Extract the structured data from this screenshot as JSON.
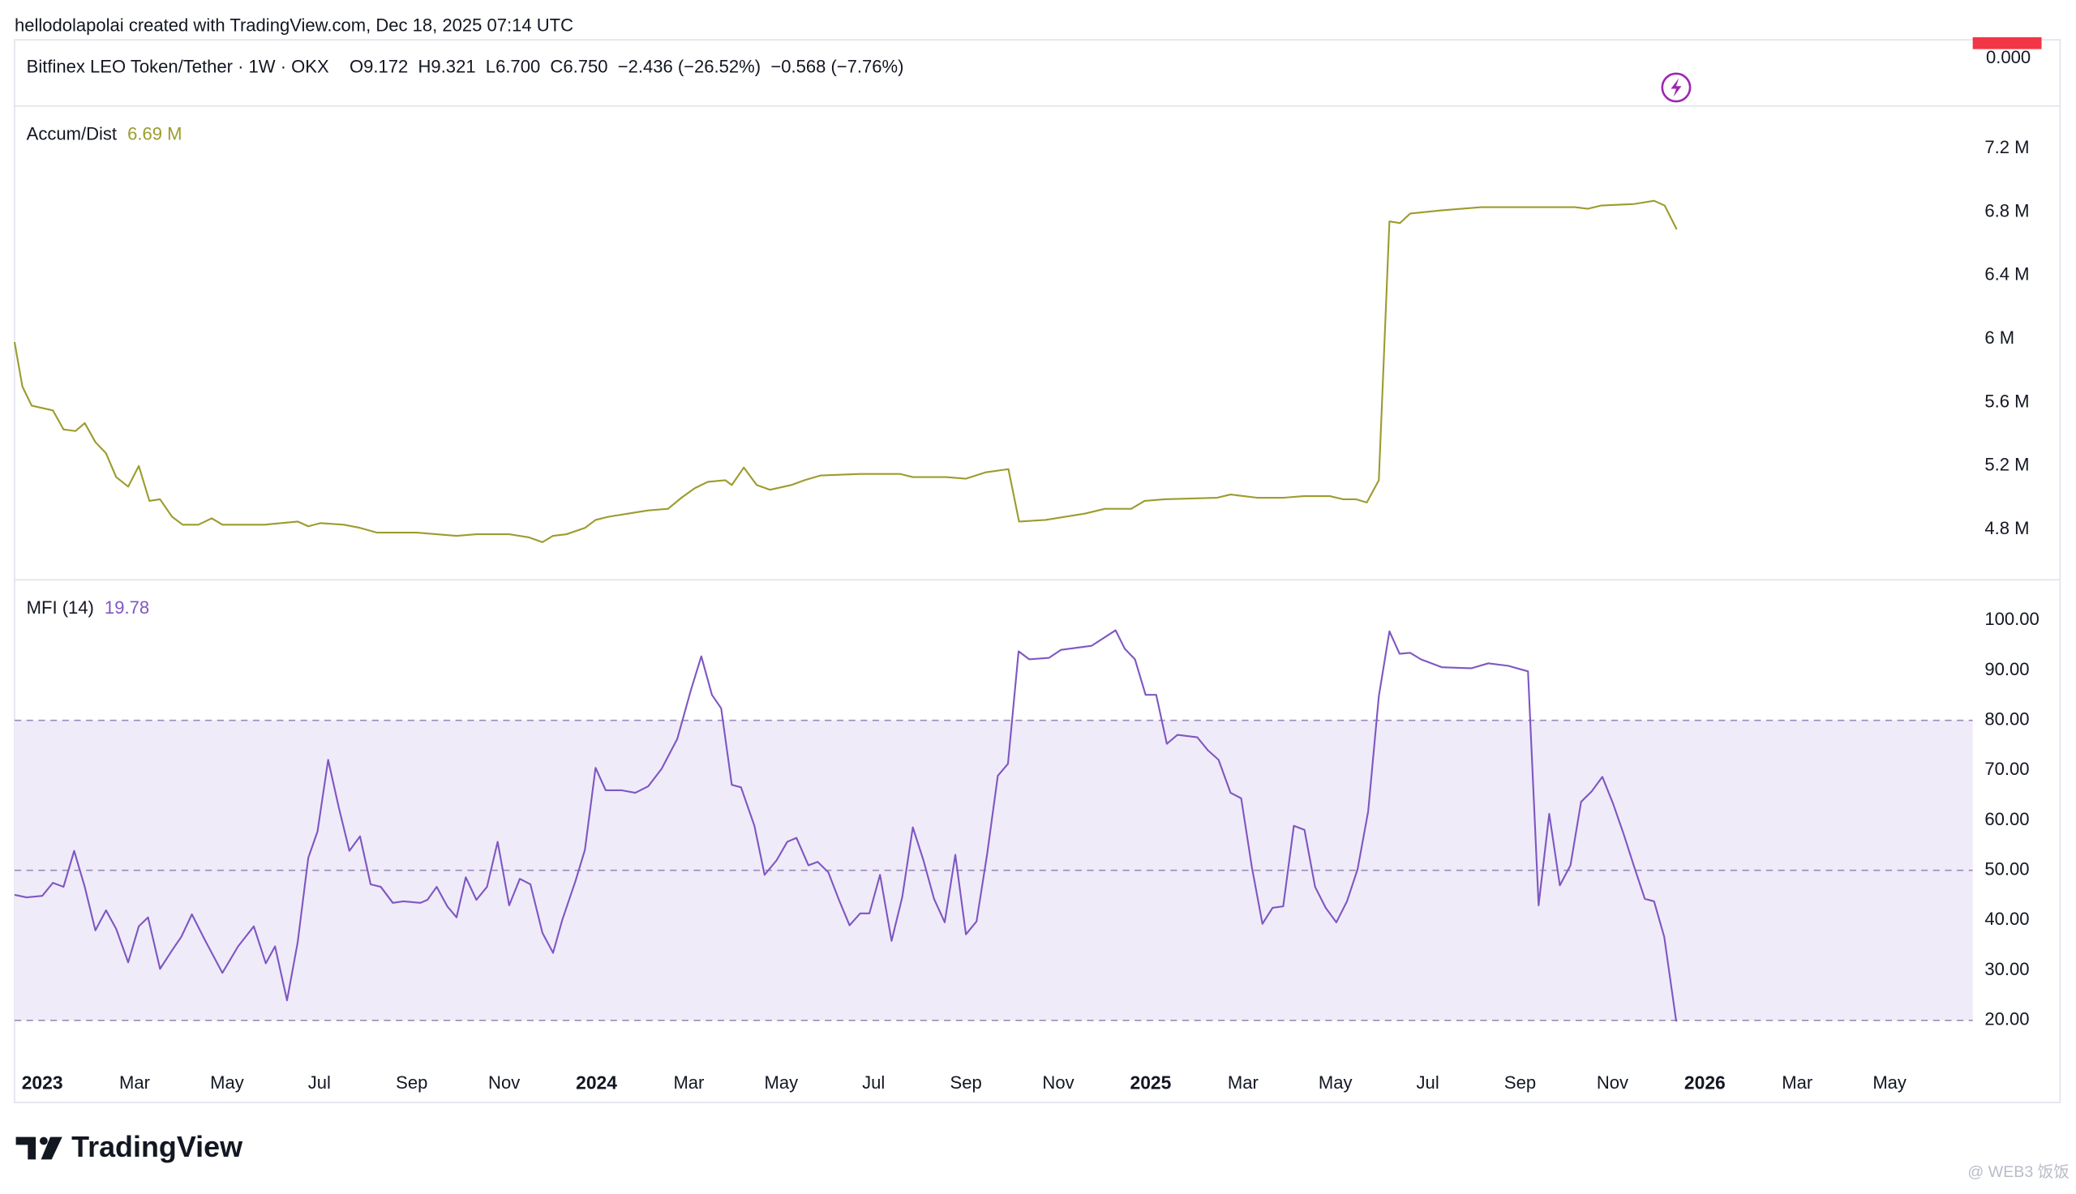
{
  "header": {
    "attribution": "hellodolapolai created with TradingView.com, Dec 18, 2025 07:14 UTC",
    "symbol": "Bitfinex LEO Token/Tether · 1W · OKX",
    "ohlc": "O9.172  H9.321  L6.700  C6.750  −2.436 (−26.52%)  −0.568 (−7.76%)",
    "price_axis_label": "0.000"
  },
  "footer": {
    "logo": "TradingView",
    "watermark": "@ WEB3 饭饭"
  },
  "chart_data": [
    {
      "type": "line",
      "title": "Accum/Dist",
      "last_value": 6.69,
      "last_value_label": "6.69 M",
      "color": "#9c9c2e",
      "x": [
        -0.6,
        -0.43,
        -0.23,
        0.23,
        0.46,
        0.72,
        0.92,
        1.15,
        1.38,
        1.6,
        1.86,
        2.09,
        2.32,
        2.55,
        2.81,
        3.04,
        3.38,
        3.67,
        3.9,
        4.81,
        5.53,
        5.76,
        6.02,
        6.53,
        6.88,
        7.25,
        7.68,
        8.11,
        8.54,
        8.97,
        9.4,
        10.11,
        10.54,
        10.83,
        11.06,
        11.35,
        11.75,
        11.98,
        12.26,
        12.69,
        13.12,
        13.55,
        13.84,
        14.13,
        14.41,
        14.79,
        14.93,
        15.19,
        15.47,
        15.76,
        16.22,
        16.5,
        16.85,
        17.71,
        18.57,
        18.85,
        19.57,
        20.0,
        20.43,
        20.92,
        21.15,
        21.72,
        22.58,
        23.01,
        23.58,
        23.87,
        24.3,
        25.44,
        25.73,
        26.3,
        26.88,
        27.31,
        27.88,
        28.17,
        28.45,
        28.68,
        28.94,
        29.17,
        29.4,
        29.62,
        30.31,
        31.17,
        31.75,
        32.46,
        33.18,
        33.47,
        33.75,
        34.47,
        34.9,
        35.13,
        35.39
      ],
      "values": [
        5.98,
        5.7,
        5.58,
        5.55,
        5.43,
        5.42,
        5.47,
        5.35,
        5.28,
        5.13,
        5.07,
        5.2,
        4.98,
        4.99,
        4.88,
        4.83,
        4.83,
        4.87,
        4.83,
        4.83,
        4.85,
        4.82,
        4.84,
        4.83,
        4.81,
        4.78,
        4.78,
        4.78,
        4.77,
        4.76,
        4.77,
        4.77,
        4.75,
        4.72,
        4.76,
        4.77,
        4.81,
        4.86,
        4.88,
        4.9,
        4.92,
        4.93,
        5.0,
        5.06,
        5.1,
        5.11,
        5.08,
        5.19,
        5.08,
        5.05,
        5.08,
        5.11,
        5.14,
        5.15,
        5.15,
        5.13,
        5.13,
        5.12,
        5.16,
        5.18,
        4.85,
        4.86,
        4.9,
        4.93,
        4.93,
        4.98,
        4.99,
        5.0,
        5.02,
        5.0,
        5.0,
        5.01,
        5.01,
        4.99,
        4.99,
        4.97,
        5.11,
        6.74,
        6.73,
        6.79,
        6.81,
        6.83,
        6.83,
        6.83,
        6.83,
        6.82,
        6.84,
        6.85,
        6.87,
        6.84,
        6.69
      ],
      "xlim": [
        -0.6,
        41.8
      ],
      "ylim": [
        4.483,
        7.467
      ],
      "yticks": [
        {
          "value": 7.2,
          "label": "7.2 M"
        },
        {
          "value": 6.8,
          "label": "6.8 M"
        },
        {
          "value": 6.4,
          "label": "6.4 M"
        },
        {
          "value": 6,
          "label": "6 M"
        },
        {
          "value": 5.6,
          "label": "5.6 M"
        },
        {
          "value": 5.2,
          "label": "5.2 M"
        },
        {
          "value": 4.8,
          "label": "4.8 M"
        }
      ]
    },
    {
      "type": "line",
      "title": "MFI (14)",
      "last_value": 19.78,
      "color": "#7e57c2",
      "band_color": "#f0ebf9",
      "levels": [
        80,
        50,
        20
      ],
      "x": [
        -0.6,
        -0.34,
        0,
        0.23,
        0.46,
        0.69,
        0.92,
        1.15,
        1.38,
        1.6,
        1.86,
        2.09,
        2.29,
        2.55,
        2.81,
        3.01,
        3.24,
        3.52,
        3.9,
        4.24,
        4.58,
        4.84,
        5.04,
        5.3,
        5.53,
        5.76,
        5.96,
        6.19,
        6.42,
        6.65,
        6.88,
        7.11,
        7.33,
        7.59,
        7.82,
        8.19,
        8.34,
        8.54,
        8.77,
        8.97,
        9.17,
        9.4,
        9.63,
        9.86,
        10.11,
        10.34,
        10.57,
        10.83,
        11.06,
        11.26,
        11.55,
        11.75,
        11.98,
        12.2,
        12.55,
        12.84,
        13.12,
        13.41,
        13.75,
        14.04,
        14.27,
        14.5,
        14.7,
        14.93,
        15.13,
        15.42,
        15.64,
        15.9,
        16.13,
        16.33,
        16.59,
        16.79,
        17.02,
        17.25,
        17.48,
        17.71,
        17.91,
        18.14,
        18.39,
        18.62,
        18.85,
        19.08,
        19.31,
        19.54,
        19.77,
        20.0,
        20.23,
        20.46,
        20.69,
        20.91,
        21.14,
        21.37,
        21.8,
        22.06,
        22.72,
        23.24,
        23.44,
        23.66,
        23.89,
        24.12,
        24.35,
        24.58,
        25.01,
        25.24,
        25.47,
        25.73,
        25.96,
        26.19,
        26.42,
        26.64,
        26.87,
        27.1,
        27.33,
        27.56,
        27.79,
        28.02,
        28.25,
        28.48,
        28.71,
        28.94,
        29.17,
        29.39,
        29.62,
        29.85,
        30.31,
        30.94,
        31.31,
        31.74,
        32.17,
        32.4,
        32.63,
        32.86,
        33.09,
        33.32,
        33.55,
        33.78,
        34.01,
        34.24,
        34.47,
        34.7,
        34.9,
        35.12,
        35.38
      ],
      "values": [
        45.1,
        44.6,
        44.9,
        47.5,
        46.7,
        53.9,
        46.7,
        38.0,
        42.0,
        38.3,
        31.6,
        38.8,
        40.6,
        30.3,
        34.0,
        36.7,
        41.2,
        36.1,
        29.5,
        34.8,
        38.8,
        31.4,
        34.8,
        24.0,
        35.6,
        52.5,
        57.8,
        72.1,
        62.6,
        53.9,
        56.8,
        47.2,
        46.7,
        43.5,
        43.8,
        43.5,
        44.1,
        46.7,
        42.8,
        40.6,
        48.6,
        44.1,
        46.7,
        55.7,
        43.0,
        48.3,
        47.2,
        37.5,
        33.5,
        40.1,
        48.0,
        54.1,
        70.5,
        66.0,
        66.0,
        65.5,
        66.8,
        70.3,
        76.3,
        85.9,
        92.8,
        85.1,
        82.4,
        67.1,
        66.6,
        58.9,
        49.1,
        52.0,
        55.7,
        56.5,
        51.0,
        51.7,
        49.6,
        44.1,
        39.0,
        41.4,
        41.4,
        49.1,
        35.9,
        44.6,
        58.6,
        52.0,
        44.3,
        39.6,
        53.1,
        37.2,
        39.8,
        53.3,
        68.9,
        71.3,
        93.8,
        92.2,
        92.5,
        94.1,
        94.9,
        98.0,
        94.3,
        92.2,
        85.1,
        85.1,
        75.3,
        77.1,
        76.6,
        74.0,
        72.1,
        65.5,
        64.4,
        50.7,
        39.3,
        42.5,
        42.8,
        58.9,
        58.1,
        46.7,
        42.5,
        39.6,
        43.8,
        50.2,
        61.8,
        84.8,
        97.8,
        93.3,
        93.5,
        92.2,
        90.6,
        90.4,
        91.4,
        90.9,
        89.8,
        43.0,
        61.3,
        47.0,
        51.0,
        63.7,
        65.8,
        68.7,
        63.4,
        57.3,
        50.7,
        44.3,
        43.8,
        36.7,
        19.78
      ],
      "xlim": [
        -0.6,
        41.8
      ],
      "ylim": [
        12.3,
        108.1
      ],
      "yticks": [
        {
          "value": 100,
          "label": "100.00"
        },
        {
          "value": 90,
          "label": "90.00"
        },
        {
          "value": 80,
          "label": "80.00"
        },
        {
          "value": 70,
          "label": "70.00"
        },
        {
          "value": 60,
          "label": "60.00"
        },
        {
          "value": 50,
          "label": "50.00"
        },
        {
          "value": 40,
          "label": "40.00"
        },
        {
          "value": 30,
          "label": "30.00"
        },
        {
          "value": 20,
          "label": "20.00"
        }
      ],
      "xticks": [
        {
          "value": 0,
          "label": "2023"
        },
        {
          "value": 2,
          "label": "Mar"
        },
        {
          "value": 4,
          "label": "May"
        },
        {
          "value": 6,
          "label": "Jul"
        },
        {
          "value": 8,
          "label": "Sep"
        },
        {
          "value": 10,
          "label": "Nov"
        },
        {
          "value": 12,
          "label": "2024"
        },
        {
          "value": 14,
          "label": "Mar"
        },
        {
          "value": 16,
          "label": "May"
        },
        {
          "value": 18,
          "label": "Jul"
        },
        {
          "value": 20,
          "label": "Sep"
        },
        {
          "value": 22,
          "label": "Nov"
        },
        {
          "value": 24,
          "label": "2025"
        },
        {
          "value": 26,
          "label": "Mar"
        },
        {
          "value": 28,
          "label": "May"
        },
        {
          "value": 30,
          "label": "Jul"
        },
        {
          "value": 32,
          "label": "Sep"
        },
        {
          "value": 34,
          "label": "Nov"
        },
        {
          "value": 36,
          "label": "2026"
        },
        {
          "value": 38,
          "label": "Mar"
        },
        {
          "value": 40,
          "label": "May"
        }
      ]
    }
  ]
}
